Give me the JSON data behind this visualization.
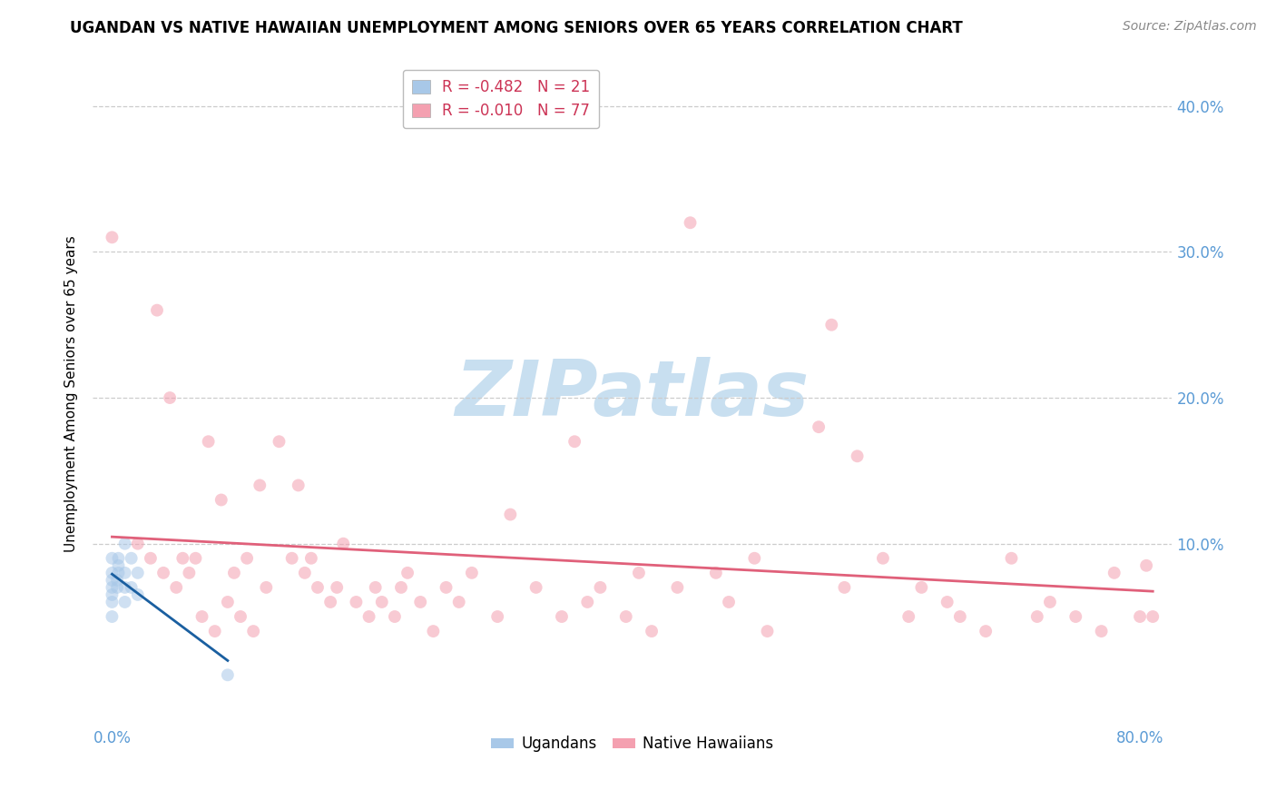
{
  "title": "UGANDAN VS NATIVE HAWAIIAN UNEMPLOYMENT AMONG SENIORS OVER 65 YEARS CORRELATION CHART",
  "source": "Source: ZipAtlas.com",
  "tick_color": "#5b9bd5",
  "ylabel": "Unemployment Among Seniors over 65 years",
  "background_color": "#ffffff",
  "grid_color": "#cccccc",
  "watermark_zip": "ZIP",
  "watermark_atlas": "atlas",
  "watermark_color": "#c8dff0",
  "ugandan_color": "#a8c8e8",
  "hawaiian_color": "#f4a0b0",
  "ugandan_line_color": "#1a5fa0",
  "hawaiian_line_color": "#e0607a",
  "legend_ugandan_label": "R = -0.482   N = 21",
  "legend_hawaiian_label": "R = -0.010   N = 77",
  "legend_title_ugandan": "Ugandans",
  "legend_title_hawaiian": "Native Hawaiians",
  "ugandan_x": [
    0.0,
    0.0,
    0.0,
    0.0,
    0.0,
    0.0,
    0.0,
    0.004,
    0.004,
    0.005,
    0.005,
    0.005,
    0.01,
    0.01,
    0.01,
    0.01,
    0.015,
    0.015,
    0.02,
    0.02,
    0.09
  ],
  "ugandan_y": [
    0.05,
    0.06,
    0.065,
    0.07,
    0.075,
    0.08,
    0.09,
    0.07,
    0.075,
    0.08,
    0.085,
    0.09,
    0.06,
    0.07,
    0.08,
    0.1,
    0.07,
    0.09,
    0.065,
    0.08,
    0.01
  ],
  "hawaiian_x": [
    0.0,
    0.02,
    0.03,
    0.035,
    0.04,
    0.045,
    0.05,
    0.055,
    0.06,
    0.065,
    0.07,
    0.075,
    0.08,
    0.085,
    0.09,
    0.095,
    0.1,
    0.105,
    0.11,
    0.115,
    0.12,
    0.13,
    0.14,
    0.145,
    0.15,
    0.155,
    0.16,
    0.17,
    0.175,
    0.18,
    0.19,
    0.2,
    0.205,
    0.21,
    0.22,
    0.225,
    0.23,
    0.24,
    0.25,
    0.26,
    0.27,
    0.28,
    0.3,
    0.31,
    0.33,
    0.35,
    0.36,
    0.37,
    0.38,
    0.4,
    0.41,
    0.42,
    0.44,
    0.45,
    0.47,
    0.48,
    0.5,
    0.51,
    0.55,
    0.56,
    0.57,
    0.58,
    0.6,
    0.62,
    0.63,
    0.65,
    0.66,
    0.68,
    0.7,
    0.72,
    0.73,
    0.75,
    0.77,
    0.78,
    0.8,
    0.805,
    0.81
  ],
  "hawaiian_y": [
    0.31,
    0.1,
    0.09,
    0.26,
    0.08,
    0.2,
    0.07,
    0.09,
    0.08,
    0.09,
    0.05,
    0.17,
    0.04,
    0.13,
    0.06,
    0.08,
    0.05,
    0.09,
    0.04,
    0.14,
    0.07,
    0.17,
    0.09,
    0.14,
    0.08,
    0.09,
    0.07,
    0.06,
    0.07,
    0.1,
    0.06,
    0.05,
    0.07,
    0.06,
    0.05,
    0.07,
    0.08,
    0.06,
    0.04,
    0.07,
    0.06,
    0.08,
    0.05,
    0.12,
    0.07,
    0.05,
    0.17,
    0.06,
    0.07,
    0.05,
    0.08,
    0.04,
    0.07,
    0.32,
    0.08,
    0.06,
    0.09,
    0.04,
    0.18,
    0.25,
    0.07,
    0.16,
    0.09,
    0.05,
    0.07,
    0.06,
    0.05,
    0.04,
    0.09,
    0.05,
    0.06,
    0.05,
    0.04,
    0.08,
    0.05,
    0.085,
    0.05
  ],
  "xlim": [
    -0.015,
    0.825
  ],
  "ylim": [
    -0.025,
    0.43
  ],
  "ytick_positions": [
    0.0,
    0.1,
    0.2,
    0.3,
    0.4
  ],
  "ytick_labels_right": [
    "",
    "10.0%",
    "20.0%",
    "30.0%",
    "40.0%"
  ],
  "xtick_positions": [
    0.0,
    0.8
  ],
  "xtick_labels": [
    "0.0%",
    "80.0%"
  ],
  "title_fontsize": 12,
  "source_fontsize": 10,
  "axis_label_fontsize": 11,
  "tick_fontsize": 12,
  "legend_fontsize": 12,
  "marker_size": 100,
  "marker_alpha": 0.55,
  "marker_linewidth": 0.5
}
